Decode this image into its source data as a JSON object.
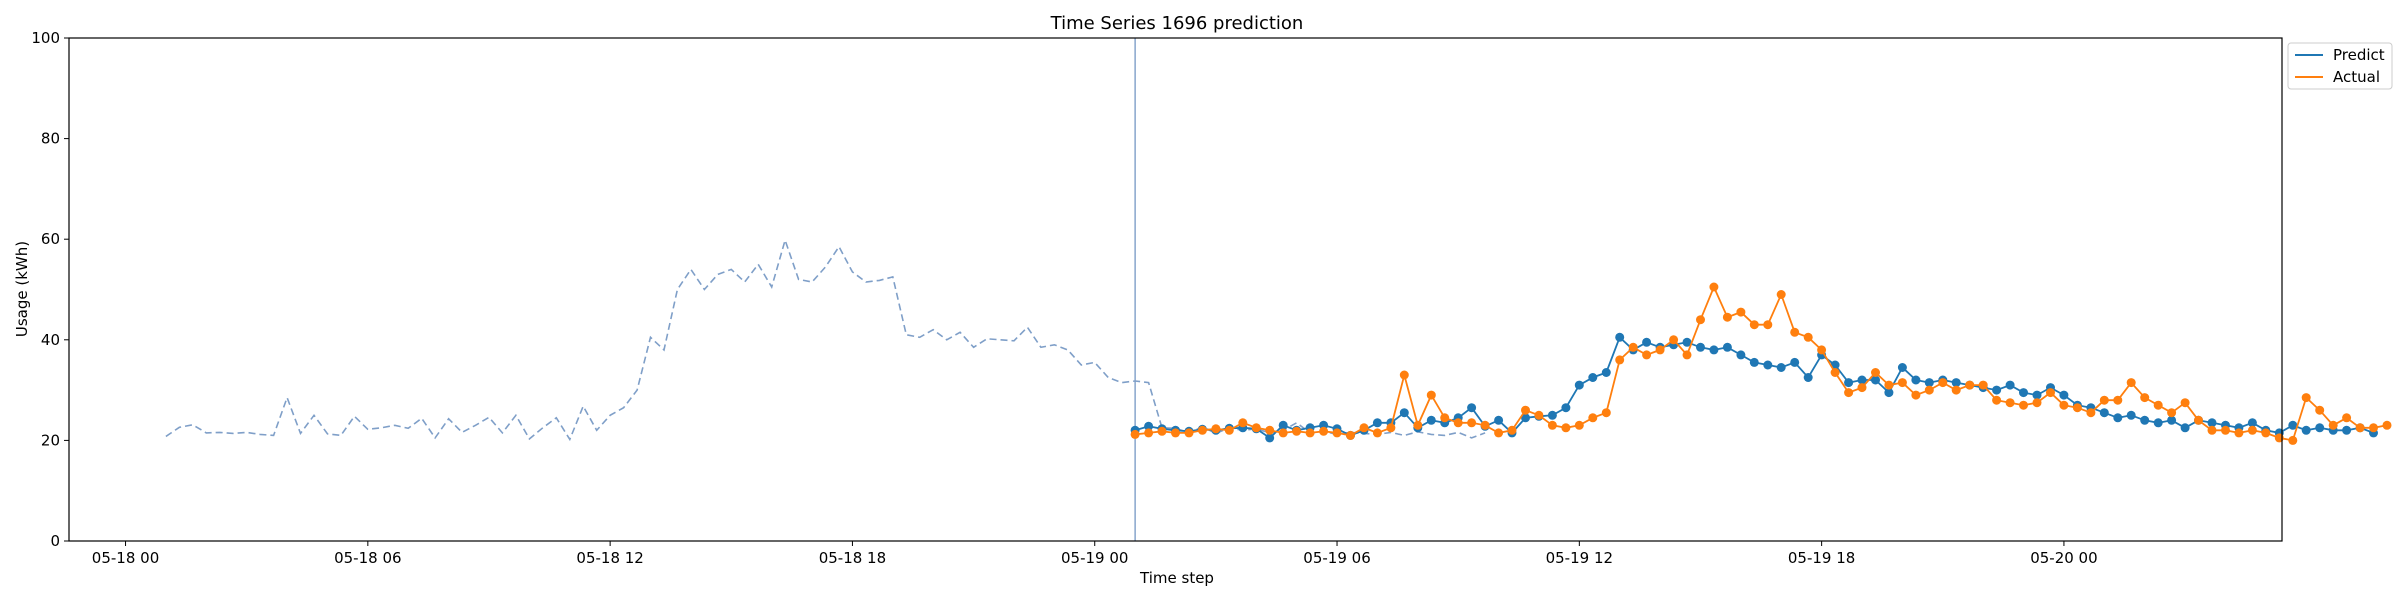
{
  "chart_data": {
    "type": "line",
    "title": "Time Series 1696 prediction",
    "xlabel": "Time step",
    "ylabel": "Usage (kWh)",
    "ylim": [
      0,
      100
    ],
    "xlim": [
      "2024-05-17 22:36",
      "2024-05-20 05:24"
    ],
    "y_ticks": [
      0,
      20,
      40,
      60,
      80,
      100
    ],
    "x_ticks": [
      {
        "value": "2024-05-18 00:00",
        "label": "05-18 00"
      },
      {
        "value": "2024-05-18 06:00",
        "label": "05-18 06"
      },
      {
        "value": "2024-05-18 12:00",
        "label": "05-18 12"
      },
      {
        "value": "2024-05-18 18:00",
        "label": "05-18 18"
      },
      {
        "value": "2024-05-19 00:00",
        "label": "05-19 00"
      },
      {
        "value": "2024-05-19 06:00",
        "label": "05-19 06"
      },
      {
        "value": "2024-05-19 12:00",
        "label": "05-19 12"
      },
      {
        "value": "2024-05-19 18:00",
        "label": "05-19 18"
      },
      {
        "value": "2024-05-20 00:00",
        "label": "05-20 00"
      }
    ],
    "vline": "2024-05-19 01:00",
    "grid": false,
    "legend": "upper right outside",
    "interval_minutes": 20,
    "history": {
      "start": "2024-05-18 01:00",
      "color": "#7f9fc8",
      "style": "dashed",
      "values": [
        20.8,
        22.6,
        23.1,
        21.5,
        21.6,
        21.4,
        21.6,
        21.2,
        21.0,
        28.5,
        21.4,
        25.0,
        21.3,
        21.0,
        24.8,
        22.2,
        22.5,
        23.0,
        22.4,
        24.4,
        20.5,
        24.3,
        21.6,
        23.0,
        24.6,
        21.5,
        25.0,
        20.3,
        22.5,
        24.5,
        20.2,
        26.8,
        22.0,
        25.0,
        26.5,
        30.0,
        40.5,
        38.0,
        50.0,
        54.0,
        50.0,
        53.0,
        54.0,
        51.5,
        55.0,
        50.5,
        59.8,
        52.0,
        51.5,
        54.5,
        58.5,
        53.5,
        51.5,
        51.8,
        52.5,
        41.0,
        40.5,
        42.0,
        40.0,
        41.5,
        38.5,
        40.2,
        40.0,
        39.8,
        42.5,
        38.5,
        39.0,
        38.0,
        35.0,
        35.5,
        32.5,
        31.5,
        31.8,
        31.5,
        22.5,
        22.4,
        21.5,
        22.7,
        21.4,
        22.5,
        22.0,
        22.3,
        21.5,
        22.0,
        23.5,
        21.5,
        21.8,
        21.2,
        21.6,
        21.4,
        21.2,
        21.6,
        21.0,
        21.7,
        21.2,
        21.0,
        21.6,
        20.5,
        21.5
      ]
    },
    "series": [
      {
        "name": "Predict",
        "color": "#1f77b4",
        "start": "2024-05-19 01:00",
        "values": [
          22.0,
          22.8,
          22.3,
          22.0,
          21.8,
          22.2,
          22.0,
          22.4,
          22.5,
          22.3,
          20.5,
          23.0,
          22.0,
          22.5,
          23.0,
          22.3,
          21.0,
          22.0,
          23.5,
          23.5,
          25.5,
          22.5,
          24.0,
          23.5,
          24.5,
          26.5,
          22.8,
          24.0,
          21.5,
          24.5,
          24.8,
          25.0,
          26.5,
          31.0,
          32.5,
          33.5,
          40.5,
          38.0,
          39.5,
          38.5,
          39.0,
          39.5,
          38.5,
          38.0,
          38.5,
          37.0,
          35.5,
          35.0,
          34.5,
          35.5,
          32.5,
          37.0,
          35.0,
          31.5,
          32.0,
          32.0,
          29.5,
          34.5,
          32.0,
          31.5,
          32.0,
          31.5,
          31.0,
          30.5,
          30.0,
          31.0,
          29.5,
          29.0,
          30.5,
          29.0,
          27.0,
          26.5,
          25.5,
          24.5,
          25.0,
          24.0,
          23.5,
          24.0,
          22.5,
          24.0,
          23.5,
          23.0,
          22.5,
          23.5,
          22.0,
          21.5,
          23.0,
          22.0,
          22.5,
          22.0,
          22.0,
          22.5,
          21.5
        ]
      },
      {
        "name": "Actual",
        "color": "#ff7f0e",
        "start": "2024-05-19 01:00",
        "values": [
          21.2,
          21.5,
          21.8,
          21.5,
          21.5,
          22.0,
          22.3,
          22.0,
          23.5,
          22.5,
          22.0,
          21.5,
          21.8,
          21.5,
          21.8,
          21.5,
          21.0,
          22.5,
          21.5,
          22.5,
          33.0,
          23.0,
          29.0,
          24.5,
          23.5,
          23.5,
          23.0,
          21.5,
          22.0,
          26.0,
          25.0,
          23.0,
          22.5,
          23.0,
          24.5,
          25.5,
          36.0,
          38.5,
          37.0,
          38.0,
          40.0,
          37.0,
          44.0,
          50.5,
          44.5,
          45.5,
          43.0,
          43.0,
          49.0,
          41.5,
          40.5,
          38.0,
          33.5,
          29.5,
          30.5,
          33.5,
          31.0,
          31.5,
          29.0,
          30.0,
          31.5,
          30.0,
          31.0,
          31.0,
          28.0,
          27.5,
          27.0,
          27.5,
          29.5,
          27.0,
          26.5,
          25.5,
          28.0,
          28.0,
          31.5,
          28.5,
          27.0,
          25.5,
          27.5,
          24.0,
          22.0,
          22.0,
          21.5,
          22.0,
          21.5,
          20.5,
          20.0,
          28.5,
          26.0,
          23.0,
          24.5,
          22.5,
          22.5,
          23.0
        ]
      }
    ]
  }
}
